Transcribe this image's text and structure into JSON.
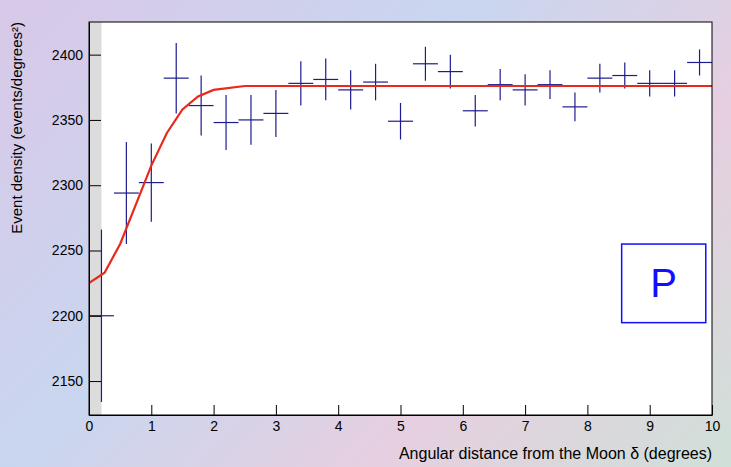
{
  "chart_data": {
    "type": "scatter",
    "x_label": "Angular distance from the Moon δ (degrees)",
    "y_label": "Event density (events/degrees²)",
    "xlim": [
      0,
      10
    ],
    "ylim": [
      2124,
      2425
    ],
    "xticks": [
      0,
      1,
      2,
      3,
      4,
      5,
      6,
      7,
      8,
      9,
      10
    ],
    "yticks": [
      2150,
      2200,
      2250,
      2300,
      2350,
      2400
    ],
    "shaded_x": [
      0,
      0.2
    ],
    "annotation": "P",
    "series": [
      {
        "type": "scatter",
        "color": "#1c1c8e",
        "marker": "none",
        "x": [
          0.2,
          0.6,
          1.0,
          1.4,
          1.8,
          2.2,
          2.6,
          3.0,
          3.4,
          3.8,
          4.2,
          4.6,
          5.0,
          5.4,
          5.8,
          6.2,
          6.6,
          7.0,
          7.4,
          7.8,
          8.2,
          8.6,
          9.0,
          9.4,
          9.8
        ],
        "values": [
          2200,
          2294,
          2302,
          2382,
          2361,
          2348,
          2350,
          2355,
          2378,
          2381,
          2373,
          2379,
          2349,
          2393,
          2387,
          2357,
          2377,
          2373,
          2377,
          2360,
          2382,
          2384,
          2378,
          2378,
          2394
        ],
        "xerr": [
          0.2,
          0.2,
          0.2,
          0.2,
          0.2,
          0.2,
          0.2,
          0.2,
          0.2,
          0.2,
          0.2,
          0.2,
          0.2,
          0.2,
          0.2,
          0.2,
          0.2,
          0.2,
          0.2,
          0.2,
          0.2,
          0.2,
          0.2,
          0.2,
          0.2
        ],
        "yerr": [
          66,
          39,
          30,
          27,
          23,
          21,
          19,
          18,
          17,
          16,
          15,
          14,
          14,
          13,
          13,
          12,
          12,
          12,
          11,
          11,
          11,
          10,
          10,
          10,
          10
        ]
      },
      {
        "type": "line",
        "color": "#e8291c",
        "x": [
          0,
          0.25,
          0.5,
          0.75,
          1.0,
          1.25,
          1.5,
          1.75,
          2.0,
          2.5,
          3.0,
          10
        ],
        "values": [
          2225,
          2233,
          2255,
          2285,
          2315,
          2340,
          2358,
          2368,
          2373,
          2376,
          2376,
          2376
        ]
      }
    ]
  }
}
